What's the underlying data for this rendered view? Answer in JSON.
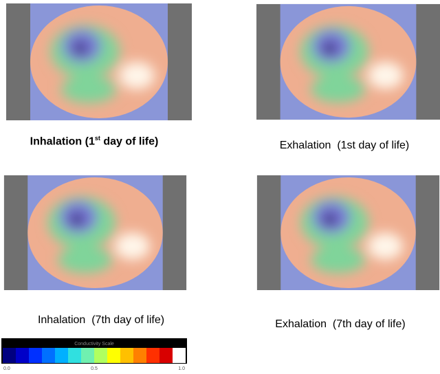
{
  "panels": [
    {
      "caption": [
        "Inhalation (1",
        "st",
        " day of life)"
      ]
    },
    {
      "caption": [
        "Exhalation  (1st day of life)"
      ]
    },
    {
      "caption": [
        "Inhalation  (7th day of life)"
      ]
    },
    {
      "caption": [
        "Exhalation  (7th day of life)"
      ]
    }
  ],
  "scale": {
    "title": "Conductivity Scale",
    "labels": [
      "0.0",
      "0.5",
      "1.0"
    ]
  }
}
